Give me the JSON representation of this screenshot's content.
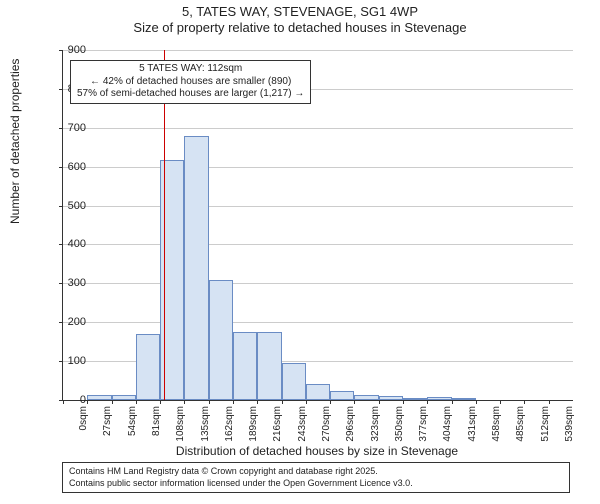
{
  "title_main": "5, TATES WAY, STEVENAGE, SG1 4WP",
  "title_sub": "Size of property relative to detached houses in Stevenage",
  "y_axis_label": "Number of detached properties",
  "x_axis_label": "Distribution of detached houses by size in Stevenage",
  "chart": {
    "type": "histogram",
    "ylim": [
      0,
      900
    ],
    "ytick_step": 100,
    "plot_background": "#ffffff",
    "grid_color": "#cccccc",
    "bar_fill": "#d6e3f3",
    "bar_border": "#6a8cc4",
    "marker_color": "#cc0000",
    "marker_value": 112,
    "x_categories": [
      "0sqm",
      "27sqm",
      "54sqm",
      "81sqm",
      "108sqm",
      "135sqm",
      "162sqm",
      "189sqm",
      "216sqm",
      "243sqm",
      "270sqm",
      "296sqm",
      "323sqm",
      "350sqm",
      "377sqm",
      "404sqm",
      "431sqm",
      "458sqm",
      "485sqm",
      "512sqm",
      "539sqm"
    ],
    "values": [
      0,
      12,
      12,
      170,
      618,
      680,
      308,
      175,
      175,
      95,
      40,
      22,
      12,
      10,
      5,
      8,
      3,
      0,
      0,
      0,
      0
    ],
    "label_fontsize": 12,
    "tick_fontsize": 10
  },
  "annotation": {
    "line1": "5 TATES WAY: 112sqm",
    "line2": "← 42% of detached houses are smaller (890)",
    "line3": "57% of semi-detached houses are larger (1,217) →"
  },
  "footer": {
    "line1": "Contains HM Land Registry data © Crown copyright and database right 2025.",
    "line2": "Contains public sector information licensed under the Open Government Licence v3.0."
  },
  "y_ticks": [
    "0",
    "100",
    "200",
    "300",
    "400",
    "500",
    "600",
    "700",
    "800",
    "900"
  ]
}
